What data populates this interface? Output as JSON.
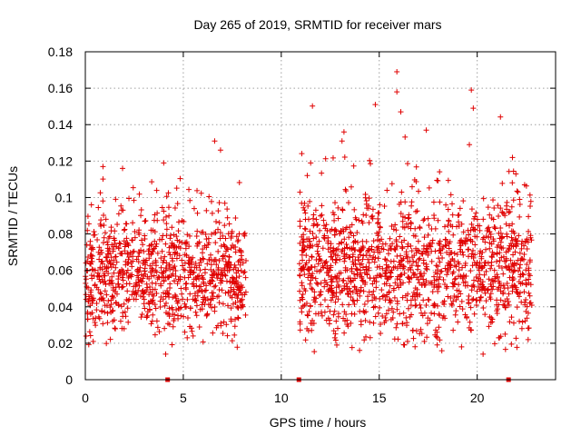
{
  "chart_data": {
    "type": "scatter",
    "title": "Day 265 of 2019, SRMTID for receiver mars",
    "xlabel": "GPS time / hours",
    "ylabel": "SRMTID / TECUs",
    "xlim": [
      0,
      24
    ],
    "ylim": [
      0,
      0.18
    ],
    "x_ticks": [
      0,
      5,
      10,
      15,
      20
    ],
    "x_tick_labels": [
      "0",
      "5",
      "10",
      "15",
      "20"
    ],
    "y_ticks": [
      0,
      0.02,
      0.04,
      0.06,
      0.08,
      0.1,
      0.12,
      0.14,
      0.16,
      0.18
    ],
    "y_tick_labels": [
      "0",
      "0.02",
      "0.04",
      "0.06",
      "0.08",
      "0.1",
      "0.12",
      "0.14",
      "0.16",
      "0.18"
    ],
    "grid": true,
    "marker": "plus",
    "color": "#e00000",
    "gap_markers_x": [
      4.2,
      10.9,
      21.6
    ],
    "segments": [
      {
        "x_start": 0.0,
        "x_end": 8.2,
        "mean": 0.056,
        "spread": 0.015,
        "count": 950
      },
      {
        "x_start": 10.9,
        "x_end": 22.8,
        "mean": 0.06,
        "spread": 0.018,
        "count": 1400
      }
    ],
    "peaks": [
      {
        "x": 0.9,
        "y": 0.117
      },
      {
        "x": 1.9,
        "y": 0.116
      },
      {
        "x": 4.0,
        "y": 0.119
      },
      {
        "x": 6.6,
        "y": 0.131
      },
      {
        "x": 6.9,
        "y": 0.126
      },
      {
        "x": 11.5,
        "y": 0.119
      },
      {
        "x": 13.1,
        "y": 0.131
      },
      {
        "x": 13.2,
        "y": 0.136
      },
      {
        "x": 14.8,
        "y": 0.151
      },
      {
        "x": 15.9,
        "y": 0.169
      },
      {
        "x": 15.9,
        "y": 0.158
      },
      {
        "x": 16.1,
        "y": 0.147
      },
      {
        "x": 17.4,
        "y": 0.137
      },
      {
        "x": 19.7,
        "y": 0.159
      },
      {
        "x": 19.8,
        "y": 0.149
      },
      {
        "x": 19.6,
        "y": 0.129
      },
      {
        "x": 21.8,
        "y": 0.122
      }
    ],
    "lows": [
      {
        "x": 0.4,
        "y": 0.021
      },
      {
        "x": 4.1,
        "y": 0.014
      },
      {
        "x": 5.2,
        "y": 0.023
      },
      {
        "x": 5.5,
        "y": 0.024
      },
      {
        "x": 19.2,
        "y": 0.018
      },
      {
        "x": 20.3,
        "y": 0.014
      },
      {
        "x": 21.1,
        "y": 0.023
      },
      {
        "x": 22.6,
        "y": 0.022
      },
      {
        "x": 17.3,
        "y": 0.021
      }
    ]
  }
}
